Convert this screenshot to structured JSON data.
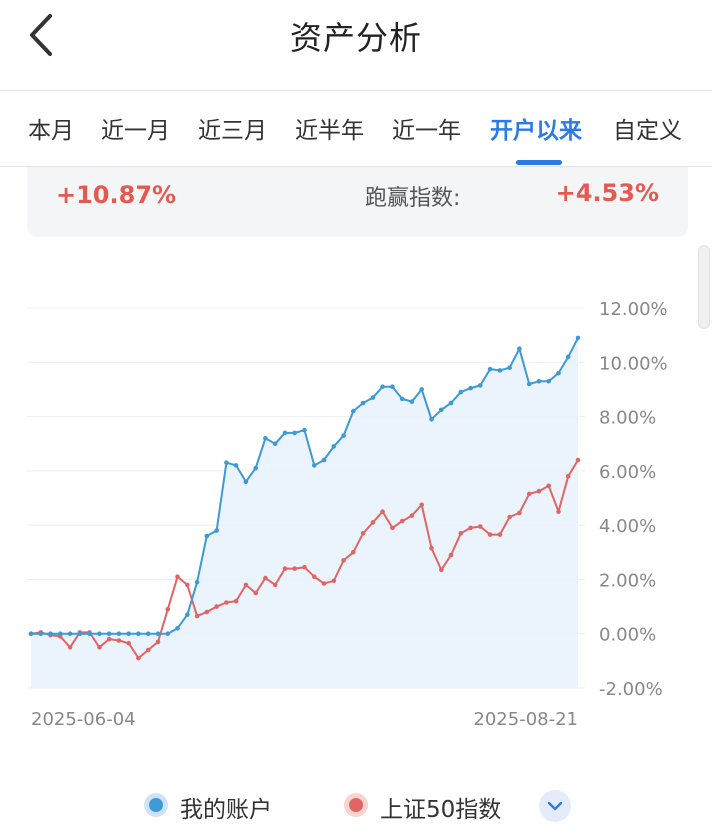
{
  "header": {
    "title": "资产分析"
  },
  "tabs": [
    {
      "label": "本月",
      "active": false
    },
    {
      "label": "近一月",
      "active": false
    },
    {
      "label": "近三月",
      "active": false
    },
    {
      "label": "近半年",
      "active": false
    },
    {
      "label": "近一年",
      "active": false
    },
    {
      "label": "开户以来",
      "active": true
    },
    {
      "label": "自定义",
      "active": false
    }
  ],
  "summary": {
    "account_return": "+10.87%",
    "excess_label": "跑赢指数:",
    "excess_value": "+4.53%"
  },
  "colors": {
    "accent": "#2b7be4",
    "account_line": "#3d9ad6",
    "account_fill": "#e7f1fb",
    "index_line": "#e06663",
    "positive": "#e35a52"
  },
  "legend": {
    "account": "我的账户",
    "index": "上证50指数"
  },
  "chart_data": {
    "type": "line",
    "x_start_label": "2025-06-04",
    "x_end_label": "2025-08-21",
    "y_unit": "%",
    "ylim": [
      -2,
      12
    ],
    "yticks": [
      "12.00%",
      "10.00%",
      "8.00%",
      "6.00%",
      "4.00%",
      "2.00%",
      "0.00%",
      "-2.00%"
    ],
    "series": [
      {
        "name": "我的账户",
        "values": [
          0,
          0,
          0,
          0,
          0,
          0,
          0,
          0,
          0,
          0,
          0,
          0,
          0,
          0,
          0,
          0.2,
          0.7,
          1.9,
          3.6,
          3.8,
          6.3,
          6.2,
          5.6,
          6.1,
          7.2,
          7.0,
          7.4,
          7.4,
          7.5,
          6.2,
          6.4,
          6.9,
          7.3,
          8.2,
          8.5,
          8.7,
          9.1,
          9.1,
          8.65,
          8.55,
          9.0,
          7.9,
          8.25,
          8.5,
          8.9,
          9.05,
          9.15,
          9.75,
          9.7,
          9.8,
          10.5,
          9.2,
          9.3,
          9.3,
          9.6,
          10.2,
          10.9
        ]
      },
      {
        "name": "上证50指数",
        "values": [
          0,
          0.05,
          -0.05,
          -0.1,
          -0.5,
          0.05,
          0.05,
          -0.5,
          -0.2,
          -0.25,
          -0.35,
          -0.9,
          -0.6,
          -0.3,
          0.9,
          2.1,
          1.8,
          0.65,
          0.8,
          1.0,
          1.15,
          1.2,
          1.8,
          1.5,
          2.05,
          1.8,
          2.4,
          2.4,
          2.45,
          2.1,
          1.85,
          1.95,
          2.7,
          3.0,
          3.7,
          4.1,
          4.5,
          3.9,
          4.15,
          4.35,
          4.75,
          3.15,
          2.35,
          2.9,
          3.7,
          3.9,
          3.95,
          3.65,
          3.65,
          4.3,
          4.45,
          5.15,
          5.25,
          5.45,
          4.5,
          5.8,
          6.4
        ]
      }
    ]
  }
}
